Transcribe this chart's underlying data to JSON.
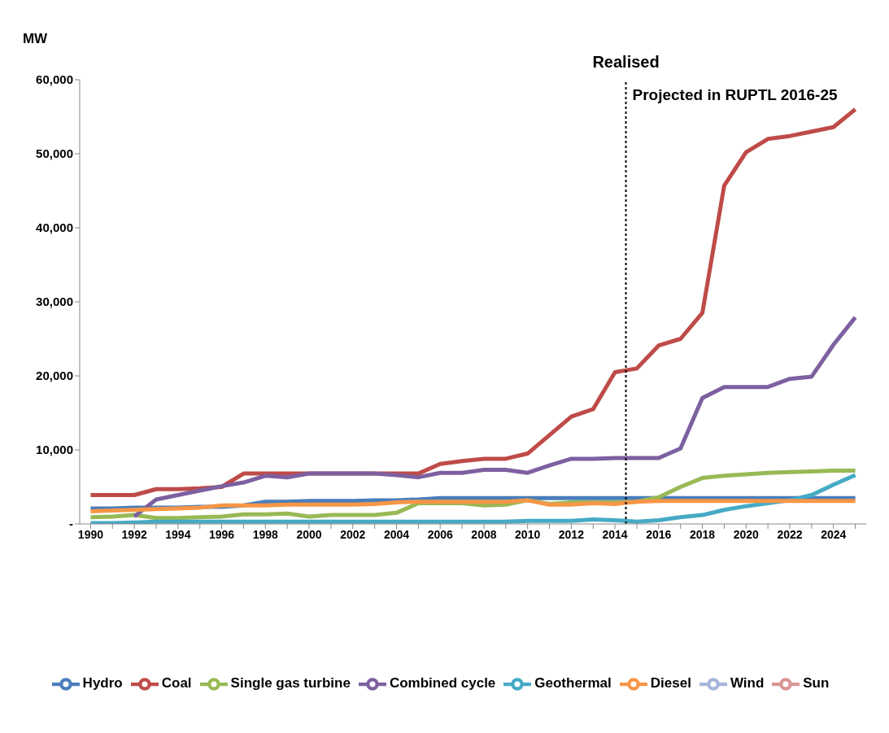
{
  "chart_data": {
    "type": "line",
    "ylabel": "MW",
    "x": [
      1990,
      1991,
      1992,
      1993,
      1994,
      1995,
      1996,
      1997,
      1998,
      1999,
      2000,
      2001,
      2002,
      2003,
      2004,
      2005,
      2006,
      2007,
      2008,
      2009,
      2010,
      2011,
      2012,
      2013,
      2014,
      2015,
      2016,
      2017,
      2018,
      2019,
      2020,
      2021,
      2022,
      2023,
      2024,
      2025
    ],
    "series": [
      {
        "name": "Hydro",
        "color": "#4a7ebb",
        "values": [
          2100,
          2100,
          2200,
          2200,
          2200,
          2300,
          2300,
          2500,
          3000,
          3000,
          3100,
          3100,
          3100,
          3200,
          3200,
          3300,
          3500,
          3500,
          3500,
          3500,
          3500,
          3500,
          3500,
          3500,
          3500,
          3500,
          3500,
          3500,
          3500,
          3500,
          3500,
          3500,
          3500,
          3500,
          3500,
          3500
        ]
      },
      {
        "name": "Coal",
        "color": "#be4b48",
        "values": [
          3900,
          3900,
          3900,
          4700,
          4700,
          4800,
          5000,
          6800,
          6800,
          6800,
          6800,
          6800,
          6800,
          6800,
          6800,
          6800,
          8100,
          8500,
          8800,
          8800,
          9500,
          12000,
          14500,
          15500,
          20500,
          21000,
          24100,
          25000,
          28500,
          45700,
          50200,
          52000,
          52400,
          53000,
          53600,
          56000
        ]
      },
      {
        "name": "Single gas turbine",
        "color": "#98b954",
        "values": [
          900,
          1000,
          1200,
          800,
          800,
          900,
          1000,
          1300,
          1300,
          1400,
          1000,
          1200,
          1200,
          1200,
          1500,
          2800,
          2800,
          2800,
          2500,
          2600,
          3200,
          2700,
          2900,
          2900,
          2900,
          3000,
          3600,
          5000,
          6200,
          6500,
          6700,
          6900,
          7000,
          7100,
          7200,
          7200
        ]
      },
      {
        "name": "Combined cycle",
        "color": "#7d60a0",
        "values": [
          null,
          null,
          1000,
          3300,
          3900,
          4500,
          5100,
          5600,
          6500,
          6300,
          6800,
          6800,
          6800,
          6800,
          6600,
          6300,
          6900,
          6900,
          7300,
          7300,
          6900,
          7900,
          8800,
          8800,
          8900,
          8900,
          8900,
          10200,
          17000,
          18500,
          18500,
          18500,
          19600,
          19900,
          24200,
          27900
        ]
      },
      {
        "name": "Geothermal",
        "color": "#46aac5",
        "values": [
          100,
          100,
          200,
          300,
          300,
          300,
          300,
          300,
          300,
          300,
          300,
          300,
          300,
          300,
          300,
          300,
          300,
          300,
          300,
          300,
          400,
          400,
          400,
          600,
          500,
          300,
          500,
          900,
          1200,
          1900,
          2400,
          2800,
          3200,
          3900,
          5300,
          6600
        ]
      },
      {
        "name": "Diesel",
        "color": "#f79646",
        "values": [
          1700,
          1800,
          1900,
          2000,
          2100,
          2200,
          2500,
          2500,
          2500,
          2600,
          2600,
          2600,
          2600,
          2700,
          2900,
          3000,
          3000,
          3000,
          3000,
          3000,
          3200,
          2600,
          2600,
          2800,
          2700,
          3000,
          3100,
          3100,
          3100,
          3100,
          3100,
          3100,
          3100,
          3100,
          3100,
          3100
        ]
      },
      {
        "name": "Wind",
        "color": "#a5b6d9",
        "values": [
          null,
          null,
          null,
          null,
          null,
          null,
          null,
          null,
          null,
          null,
          null,
          null,
          null,
          null,
          null,
          null,
          null,
          null,
          null,
          null,
          null,
          null,
          null,
          null,
          null,
          null,
          null,
          null,
          null,
          null,
          null,
          null,
          null,
          null,
          null,
          null
        ]
      },
      {
        "name": "Sun",
        "color": "#d99694",
        "values": [
          null,
          null,
          null,
          null,
          null,
          null,
          null,
          null,
          null,
          null,
          null,
          null,
          null,
          null,
          null,
          null,
          null,
          null,
          null,
          null,
          null,
          null,
          null,
          null,
          null,
          null,
          null,
          null,
          null,
          null,
          null,
          null,
          null,
          null,
          null,
          null
        ]
      }
    ],
    "xlim": [
      1989.5,
      2025.5
    ],
    "xticks": [
      1990,
      {
        "value": 1991,
        "label": null
      },
      1992,
      {
        "value": 1993,
        "label": null
      },
      1994,
      {
        "value": 1995,
        "label": null
      },
      1996,
      {
        "value": 1997,
        "label": null
      },
      1998,
      {
        "value": 1999,
        "label": null
      },
      2000,
      {
        "value": 2001,
        "label": null
      },
      2002,
      {
        "value": 2003,
        "label": null
      },
      2004,
      {
        "value": 2005,
        "label": null
      },
      2006,
      {
        "value": 2007,
        "label": null
      },
      2008,
      {
        "value": 2009,
        "label": null
      },
      2010,
      {
        "value": 2011,
        "label": null
      },
      2012,
      {
        "value": 2013,
        "label": null
      },
      2014,
      {
        "value": 2015,
        "label": null
      },
      2016,
      {
        "value": 2017,
        "label": null
      },
      2018,
      {
        "value": 2019,
        "label": null
      },
      2020,
      {
        "value": 2021,
        "label": null
      },
      2022,
      {
        "value": 2023,
        "label": null
      },
      2024,
      {
        "value": 2025,
        "label": null
      }
    ],
    "ylim": [
      0,
      60000
    ],
    "yticks": [
      {
        "value": 0,
        "label": "-"
      },
      {
        "value": 10000,
        "label": "10,000"
      },
      {
        "value": 20000,
        "label": "20,000"
      },
      {
        "value": 30000,
        "label": "30,000"
      },
      {
        "value": 40000,
        "label": "40,000"
      },
      {
        "value": 50000,
        "label": "50,000"
      },
      {
        "value": 60000,
        "label": "60,000"
      }
    ],
    "ref_lines": [
      {
        "axis": "x",
        "value": 2014.5,
        "label": "Realised",
        "color": "#000000",
        "line_style": "dotted"
      }
    ],
    "annotations": [
      {
        "text": "Projected in RUPTL 2016-25",
        "x": 2014.5,
        "y": 58000
      }
    ],
    "grid": false,
    "legend": "bottom",
    "marker": "none",
    "line_style": "solid"
  }
}
